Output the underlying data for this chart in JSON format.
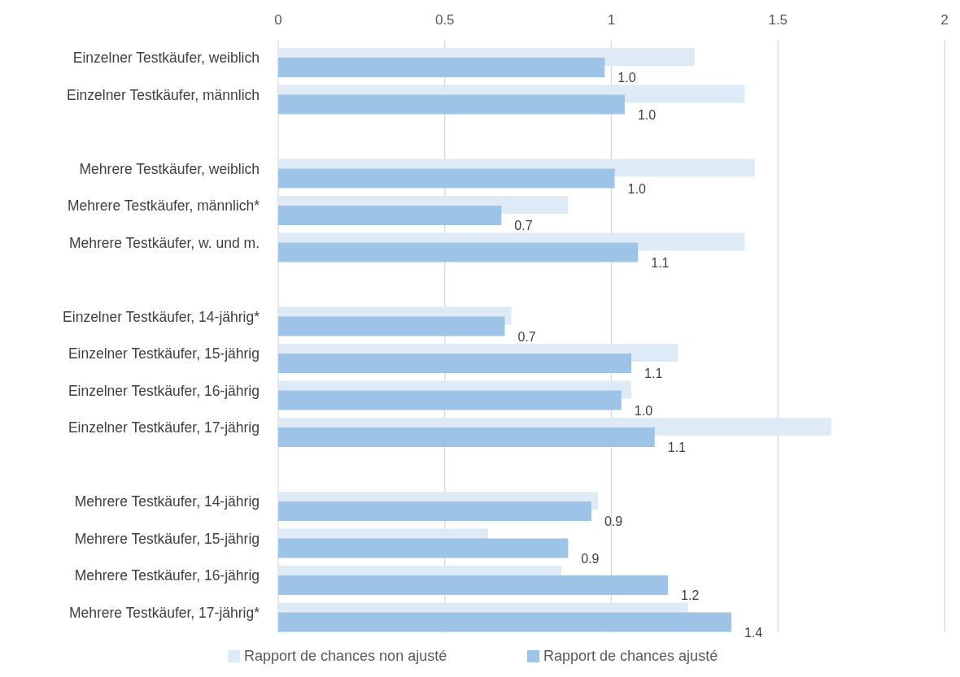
{
  "chart_data": {
    "type": "bar",
    "orientation": "horizontal",
    "categories": [
      "Einzelner Testkäufer, weiblich",
      "Einzelner Testkäufer, männlich",
      null,
      "Mehrere Testkäufer, weiblich",
      "Mehrere Testkäufer, männlich*",
      "Mehrere Testkäufer, w. und m.",
      null,
      "Einzelner Testkäufer, 14-jährig*",
      "Einzelner Testkäufer, 15-jährig",
      "Einzelner Testkäufer, 16-jährig",
      "Einzelner Testkäufer, 17-jährig",
      null,
      "Mehrere Testkäufer, 14-jährig",
      "Mehrere Testkäufer, 15-jährig",
      "Mehrere Testkäufer, 16-jährig",
      "Mehrere Testkäufer, 17-jährig*"
    ],
    "series": [
      {
        "name": "Rapport de chances non ajusté",
        "color": "#deebf7",
        "values": [
          1.25,
          1.4,
          null,
          1.43,
          0.87,
          1.4,
          null,
          0.7,
          1.2,
          1.06,
          1.66,
          null,
          0.96,
          0.63,
          0.85,
          1.23
        ]
      },
      {
        "name": "Rapport de chances ajusté",
        "color": "#9dc3e6",
        "values": [
          0.98,
          1.04,
          null,
          1.01,
          0.67,
          1.08,
          null,
          0.68,
          1.06,
          1.03,
          1.13,
          null,
          0.94,
          0.87,
          1.17,
          1.36
        ],
        "value_labels": [
          "1.0",
          "1.0",
          null,
          "1.0",
          "0.7",
          "1.1",
          null,
          "0.7",
          "1.1",
          "1.0",
          "1.1",
          null,
          "0.9",
          "0.9",
          "1.2",
          "1.4"
        ]
      }
    ],
    "xlim": [
      0,
      2
    ],
    "xticks": [
      0,
      0.5,
      1,
      1.5,
      2
    ],
    "grid": "x",
    "legend": "bottom"
  }
}
